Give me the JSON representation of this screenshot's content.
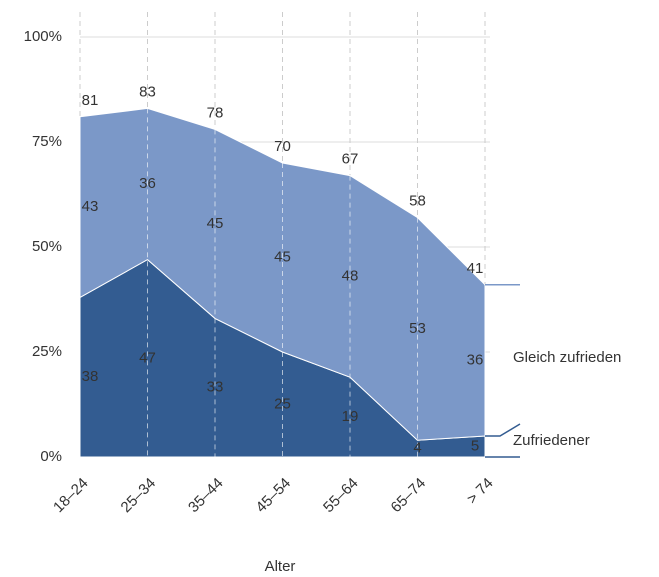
{
  "chart_data": {
    "type": "stacked_area",
    "categories": [
      "18–24",
      "25–34",
      "35–44",
      "45–54",
      "55–64",
      "65–74",
      "> 74"
    ],
    "series": [
      {
        "name": "Zufriedener",
        "color": "#335c91",
        "values": [
          38,
          47,
          33,
          25,
          19,
          4,
          5
        ]
      },
      {
        "name": "Gleich zufrieden",
        "color": "#7b98c8",
        "values": [
          43,
          36,
          45,
          45,
          48,
          53,
          36
        ]
      }
    ],
    "totals": [
      81,
      83,
      78,
      70,
      67,
      58,
      41
    ],
    "xlabel": "Alter",
    "ylim": [
      0,
      100
    ],
    "yticks": [
      {
        "value": 0,
        "label": "0%"
      },
      {
        "value": 25,
        "label": "25%"
      },
      {
        "value": 50,
        "label": "50%"
      },
      {
        "value": 75,
        "label": "75%"
      },
      {
        "value": 100,
        "label": "100%"
      }
    ],
    "grid": true
  }
}
